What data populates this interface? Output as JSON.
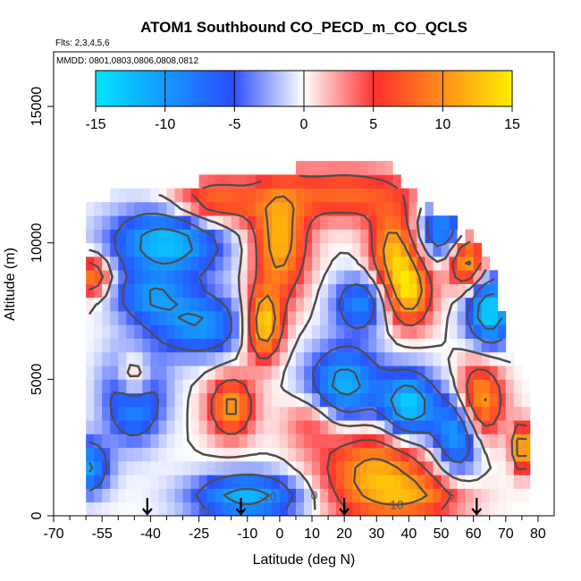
{
  "chart_data": {
    "type": "heatmap",
    "title": "ATOM1 Southbound CO_PECD_m_CO_QCLS",
    "subtitle": "Flts: 2,3,4,5,6",
    "annotation": "MMDD: 0801,0803,0806,0808,0812",
    "xlabel": "Latitude (deg N)",
    "ylabel": "Altitude (m)",
    "xlim": [
      -70,
      85
    ],
    "ylim": [
      0,
      17000
    ],
    "x_ticks": [
      -70,
      -55,
      -40,
      -25,
      -10,
      0,
      10,
      20,
      30,
      40,
      50,
      60,
      70,
      80
    ],
    "x_minor_ticks": [
      -65,
      -60,
      -50,
      -45,
      -35,
      -30,
      -20,
      -15,
      -5,
      5,
      15,
      25,
      35,
      45,
      55,
      65,
      75
    ],
    "y_ticks": [
      0,
      5000,
      10000,
      15000
    ],
    "colorbar": {
      "ticks": [
        -15,
        -10,
        -5,
        0,
        5,
        10,
        15
      ],
      "range": [
        -15,
        15
      ],
      "colors": [
        "#00e5ff",
        "#2a4dff",
        "#ffffff",
        "#ff3030",
        "#ffee00"
      ]
    },
    "contour_levels": [
      -15,
      -10,
      -5,
      0,
      5,
      10
    ],
    "contour_color": "#4d4d4d",
    "grid": false,
    "flight_markers_lat": [
      -41,
      -12,
      20,
      61
    ],
    "blobs": [
      {
        "lat": 0,
        "alt": 10000,
        "v": 12,
        "sx": 6,
        "sy": 1400
      },
      {
        "lat": -5,
        "alt": 7000,
        "v": 14,
        "sx": 4,
        "sy": 900
      },
      {
        "lat": 35,
        "alt": 9800,
        "v": 11,
        "sx": 5,
        "sy": 1000
      },
      {
        "lat": 40,
        "alt": 8200,
        "v": 13,
        "sx": 5,
        "sy": 900
      },
      {
        "lat": 20,
        "alt": 11800,
        "v": 8,
        "sx": 15,
        "sy": 700
      },
      {
        "lat": -20,
        "alt": 11500,
        "v": 9,
        "sx": 10,
        "sy": 600
      },
      {
        "lat": 30,
        "alt": 1500,
        "v": 12,
        "sx": 12,
        "sy": 1200
      },
      {
        "lat": -15,
        "alt": 4000,
        "v": 11,
        "sx": 5,
        "sy": 800
      },
      {
        "lat": -45,
        "alt": 5000,
        "v": 13,
        "sx": 4,
        "sy": 700
      },
      {
        "lat": -58,
        "alt": 8800,
        "v": 10,
        "sx": 4,
        "sy": 500
      },
      {
        "lat": 58,
        "alt": 9300,
        "v": 12,
        "sx": 4,
        "sy": 700
      },
      {
        "lat": 62,
        "alt": 4200,
        "v": 12,
        "sx": 5,
        "sy": 1000
      },
      {
        "lat": 75,
        "alt": 2500,
        "v": 14,
        "sx": 2,
        "sy": 600
      },
      {
        "lat": 45,
        "alt": 700,
        "v": 6,
        "sx": 10,
        "sy": 500
      },
      {
        "lat": 10,
        "alt": 3500,
        "v": 5,
        "sx": 6,
        "sy": 700
      },
      {
        "lat": -35,
        "alt": 10000,
        "v": -13,
        "sx": 12,
        "sy": 900
      },
      {
        "lat": -45,
        "alt": 4500,
        "v": -14,
        "sx": 6,
        "sy": 1100
      },
      {
        "lat": 20,
        "alt": 4800,
        "v": -12,
        "sx": 8,
        "sy": 1000
      },
      {
        "lat": 40,
        "alt": 4000,
        "v": -14,
        "sx": 6,
        "sy": 900
      },
      {
        "lat": -25,
        "alt": 7000,
        "v": -10,
        "sx": 10,
        "sy": 800
      },
      {
        "lat": -60,
        "alt": 1800,
        "v": -11,
        "sx": 5,
        "sy": 700
      },
      {
        "lat": -10,
        "alt": 700,
        "v": -12,
        "sx": 12,
        "sy": 600
      },
      {
        "lat": 65,
        "alt": 7500,
        "v": -14,
        "sx": 5,
        "sy": 900
      },
      {
        "lat": 55,
        "alt": 3000,
        "v": -12,
        "sx": 5,
        "sy": 1000
      },
      {
        "lat": 25,
        "alt": 7800,
        "v": -9,
        "sx": 6,
        "sy": 700
      },
      {
        "lat": -40,
        "alt": 8000,
        "v": -8,
        "sx": 8,
        "sy": 600
      },
      {
        "lat": 50,
        "alt": 10500,
        "v": -10,
        "sx": 5,
        "sy": 700
      }
    ],
    "coverage": [
      {
        "lat": -60,
        "top": 11500
      },
      {
        "lat": -50,
        "top": 11800
      },
      {
        "lat": -40,
        "top": 12000
      },
      {
        "lat": -30,
        "top": 12000
      },
      {
        "lat": -20,
        "top": 12500
      },
      {
        "lat": -10,
        "top": 12500
      },
      {
        "lat": 0,
        "top": 12500
      },
      {
        "lat": 10,
        "top": 13000
      },
      {
        "lat": 20,
        "top": 13000
      },
      {
        "lat": 28,
        "top": 13000
      },
      {
        "lat": 35,
        "top": 12800
      },
      {
        "lat": 40,
        "top": 12000
      },
      {
        "lat": 50,
        "top": 11000
      },
      {
        "lat": 58,
        "top": 10500
      },
      {
        "lat": 65,
        "top": 9500
      },
      {
        "lat": 72,
        "top": 5800
      },
      {
        "lat": 78,
        "top": 5000
      }
    ],
    "coverage_extra": [
      {
        "lat_min": 74,
        "lat_max": 78,
        "alt_min": 1800,
        "alt_max": 3200
      }
    ]
  }
}
